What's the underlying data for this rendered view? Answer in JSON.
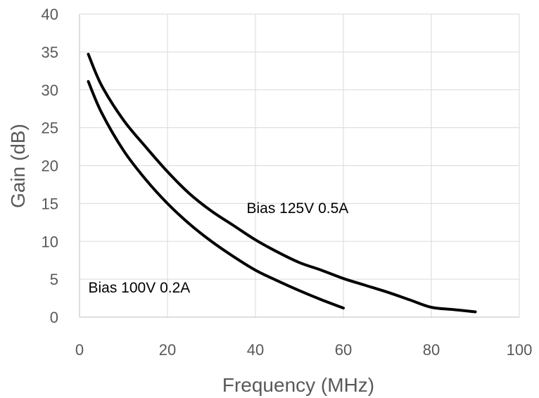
{
  "chart_data": {
    "type": "line",
    "xlabel": "Frequency (MHz)",
    "ylabel": "Gain (dB)",
    "xlim": [
      0,
      100
    ],
    "ylim": [
      0,
      40
    ],
    "xticks": [
      0,
      20,
      40,
      60,
      80,
      100
    ],
    "yticks": [
      0,
      5,
      10,
      15,
      20,
      25,
      30,
      35,
      40
    ],
    "grid": true,
    "series": [
      {
        "x": [
          2,
          5,
          10,
          15,
          20,
          25,
          30,
          35,
          40,
          45,
          50,
          55,
          60,
          65,
          70,
          75,
          80,
          85,
          90
        ],
        "y": [
          34.7,
          30.6,
          26,
          22.5,
          19.2,
          16.3,
          14,
          12.1,
          10.2,
          8.6,
          7.2,
          6.2,
          5.1,
          4.2,
          3.3,
          2.3,
          1.3,
          1.0,
          0.7
        ],
        "color": "#000000"
      },
      {
        "x": [
          2,
          5,
          10,
          15,
          20,
          25,
          30,
          35,
          40,
          45,
          50,
          55,
          60
        ],
        "y": [
          31.1,
          27,
          22,
          18.2,
          15,
          12.3,
          10,
          8,
          6.2,
          4.8,
          3.5,
          2.3,
          1.2
        ],
        "color": "#000000"
      }
    ],
    "annotations": [
      {
        "text": "Bias 125V 0.5A",
        "x": 38,
        "y": 14.5
      },
      {
        "text": "Bias 100V 0.2A",
        "x": 2,
        "y": 4
      }
    ]
  }
}
